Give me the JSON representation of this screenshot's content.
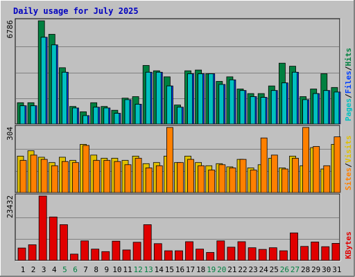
{
  "title": "Daily usage for July 2025",
  "colors": {
    "background": "#c0c0c0",
    "plot_bg": "#c0c0c0",
    "title": "#0000c0",
    "hits": "#008040",
    "files": "#0040ff",
    "pages": "#00c0c0",
    "visits": "#e0c000",
    "sites": "#ff8000",
    "kbytes": "#e00000",
    "weekend_label": "#008040",
    "day_label": "#000000"
  },
  "right_labels": {
    "top": [
      "Pages",
      "/",
      "Files",
      "/",
      "Hits"
    ],
    "mid": [
      "Sites",
      "/",
      "Visits"
    ],
    "bottom": [
      "KBytes"
    ]
  },
  "chart_data": [
    {
      "type": "bar",
      "panel": "hits-files-pages",
      "categories": [
        "1",
        "2",
        "3",
        "4",
        "5",
        "6",
        "7",
        "8",
        "9",
        "10",
        "11",
        "12",
        "13",
        "14",
        "15",
        "16",
        "17",
        "18",
        "19",
        "20",
        "21",
        "22",
        "23",
        "24",
        "25",
        "26",
        "27",
        "28",
        "29",
        "30",
        "31"
      ],
      "ymax_label": "6786",
      "ymax": 6786,
      "series": [
        {
          "name": "Hits",
          "values": [
            1400,
            1400,
            6786,
            5900,
            3700,
            1150,
            800,
            1400,
            1150,
            900,
            1700,
            1800,
            3850,
            3500,
            3100,
            1250,
            3500,
            3550,
            3300,
            2800,
            3100,
            2300,
            2000,
            2000,
            2500,
            4000,
            3800,
            1800,
            2300,
            3300,
            2400
          ]
        },
        {
          "name": "Files",
          "values": [
            1200,
            1200,
            5700,
            5200,
            3400,
            1050,
            550,
            1100,
            1050,
            700,
            1600,
            1300,
            3400,
            3400,
            2500,
            1100,
            3300,
            3300,
            3300,
            2600,
            2900,
            2200,
            1800,
            1750,
            2200,
            2700,
            3400,
            1600,
            2000,
            2200,
            2100
          ]
        },
        {
          "name": "Pages",
          "values": [
            1200,
            1200,
            5700,
            5200,
            3400,
            1050,
            550,
            1100,
            1050,
            700,
            1600,
            1300,
            3400,
            3400,
            2500,
            1100,
            3300,
            3300,
            3300,
            2600,
            2900,
            2200,
            1800,
            1750,
            2200,
            2700,
            3400,
            1600,
            2000,
            2200,
            2100
          ]
        }
      ]
    },
    {
      "type": "bar",
      "panel": "visits-sites",
      "categories": [
        "1",
        "2",
        "3",
        "4",
        "5",
        "6",
        "7",
        "8",
        "9",
        "10",
        "11",
        "12",
        "13",
        "14",
        "15",
        "16",
        "17",
        "18",
        "19",
        "20",
        "21",
        "22",
        "23",
        "24",
        "25",
        "26",
        "27",
        "28",
        "29",
        "30",
        "31"
      ],
      "ymax_label": "304",
      "ymax": 304,
      "series": [
        {
          "name": "Visits",
          "values": [
            170,
            195,
            165,
            140,
            165,
            150,
            225,
            175,
            160,
            160,
            150,
            170,
            135,
            140,
            170,
            140,
            170,
            140,
            125,
            135,
            120,
            155,
            115,
            130,
            160,
            115,
            170,
            125,
            210,
            110,
            225
          ]
        },
        {
          "name": "Sites",
          "values": [
            150,
            175,
            155,
            125,
            145,
            140,
            220,
            150,
            150,
            145,
            130,
            160,
            115,
            125,
            304,
            140,
            155,
            125,
            105,
            130,
            115,
            155,
            105,
            255,
            175,
            110,
            160,
            304,
            215,
            125,
            260
          ]
        }
      ]
    },
    {
      "type": "bar",
      "panel": "kbytes",
      "categories": [
        "1",
        "2",
        "3",
        "4",
        "5",
        "6",
        "7",
        "8",
        "9",
        "10",
        "11",
        "12",
        "13",
        "14",
        "15",
        "16",
        "17",
        "18",
        "19",
        "20",
        "21",
        "22",
        "23",
        "24",
        "25",
        "26",
        "27",
        "28",
        "29",
        "30",
        "31"
      ],
      "ymax_label": "23432",
      "ymax": 23432,
      "series": [
        {
          "name": "KBytes",
          "values": [
            4500,
            5700,
            23432,
            15800,
            13000,
            2300,
            7100,
            4100,
            3200,
            7000,
            3800,
            6600,
            13000,
            6100,
            3500,
            3500,
            6800,
            4100,
            2900,
            7100,
            4800,
            6800,
            4600,
            4000,
            4600,
            3500,
            10000,
            5100,
            6700,
            5000,
            6200
          ]
        }
      ]
    }
  ],
  "weekend_days": [
    "5",
    "6",
    "12",
    "13",
    "19",
    "20",
    "26",
    "27"
  ]
}
